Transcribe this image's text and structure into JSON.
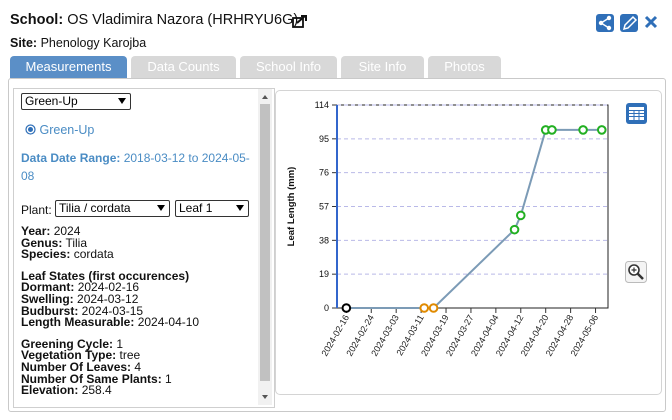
{
  "header": {
    "school_label": "School:",
    "school": "OS Vladimira Nazora (HRHRYU6G)",
    "site_label": "Site:",
    "site": "Phenology Karojba"
  },
  "tabs": [
    "Measurements",
    "Data Counts",
    "School Info",
    "Site Info",
    "Photos"
  ],
  "panel": {
    "protocol": "Green-Up",
    "radio": "Green-Up",
    "date_range_label": "Data Date Range:",
    "date_range": "2018-03-12 to 2024-05-08",
    "plant_label": "Plant:",
    "plant": "Tilia / cordata",
    "leaf": "Leaf 1",
    "groups": [
      [
        {
          "label": "Year:",
          "value": "2024"
        },
        {
          "label": "Genus:",
          "value": "Tilia"
        },
        {
          "label": "Species:",
          "value": "cordata"
        }
      ],
      [
        {
          "label": "Leaf States (first occurences)"
        },
        {
          "label": "Dormant:",
          "value": "2024-02-16"
        },
        {
          "label": "Swelling:",
          "value": "2024-03-12"
        },
        {
          "label": "Budburst:",
          "value": "2024-03-15"
        },
        {
          "label": "Length Measurable:",
          "value": "2024-04-10"
        }
      ],
      [
        {
          "label": "Greening Cycle:",
          "value": "1"
        },
        {
          "label": "Vegetation Type:",
          "value": "tree"
        },
        {
          "label": "Number Of Leaves:",
          "value": "4"
        },
        {
          "label": "Number Of Same Plants:",
          "value": "1"
        },
        {
          "label": "Elevation:",
          "value": "258.4"
        }
      ]
    ]
  },
  "chart_data": {
    "type": "line",
    "y_label": "Leaf Length (mm)",
    "x": [
      "2024-02-16",
      "2024-03-12",
      "2024-03-15",
      "2024-04-10",
      "2024-04-12",
      "2024-04-20",
      "2024-04-22",
      "2024-05-02",
      "2024-05-08"
    ],
    "values": [
      0,
      0,
      0,
      44,
      52,
      100,
      100,
      100,
      100
    ],
    "point_colors": [
      "#000000",
      "#e08a00",
      "#e08a00",
      "#22b022",
      "#22b022",
      "#22b022",
      "#22b022",
      "#22b022",
      "#22b022"
    ],
    "line_color": "#7c9bb6",
    "xlim": [
      "2024-02-13",
      "2024-05-10"
    ],
    "xticks": [
      "2024-02-16",
      "2024-02-24",
      "2024-03-03",
      "2024-03-11",
      "2024-03-19",
      "2024-03-27",
      "2024-04-04",
      "2024-04-12",
      "2024-04-20",
      "2024-04-28",
      "2024-05-06"
    ],
    "ylim": [
      0,
      114
    ],
    "yticks": [
      0,
      19,
      38,
      57,
      76,
      95,
      114
    ],
    "grid": true
  }
}
